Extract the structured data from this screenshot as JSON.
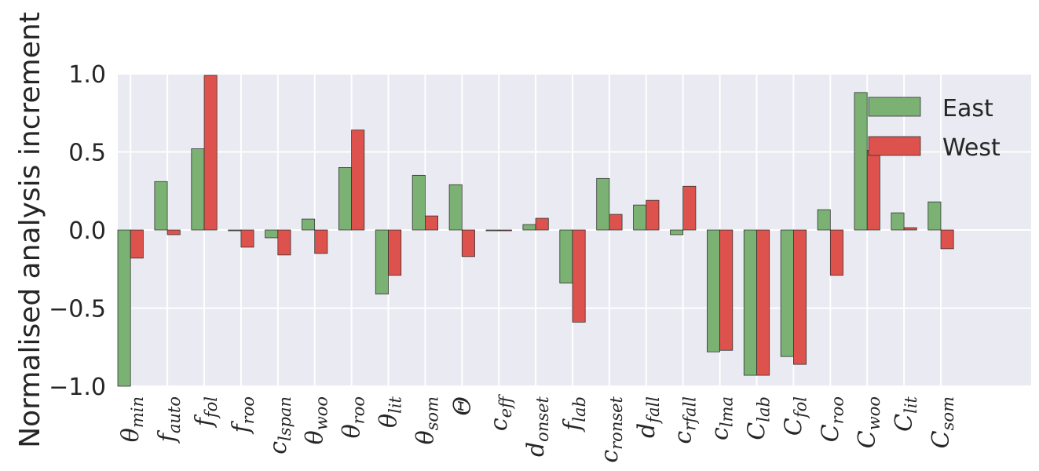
{
  "chart_data": {
    "type": "bar",
    "title": "",
    "xlabel": "",
    "ylabel": "Normalised analysis increment",
    "ylim": [
      -1.0,
      1.0
    ],
    "yticks": [
      1.0,
      0.5,
      0.0,
      -0.5,
      -1.0
    ],
    "ytick_labels": [
      "1.0",
      "0.5",
      "0.0",
      "−0.5",
      "−1.0"
    ],
    "grid": true,
    "legend_position": "top-right",
    "categories": [
      "θmin",
      "fauto",
      "ffol",
      "froo",
      "clspan",
      "θwoo",
      "θroo",
      "θlit",
      "θsom",
      "Θ",
      "ceff",
      "donset",
      "flab",
      "cronset",
      "dfall",
      "crfall",
      "clma",
      "Clab",
      "Cfol",
      "Croo",
      "Cwoo",
      "Clit",
      "Csom"
    ],
    "category_labels": [
      {
        "base": "θ",
        "sub": "min"
      },
      {
        "base": "f",
        "sub": "auto"
      },
      {
        "base": "f",
        "sub": "fol"
      },
      {
        "base": "f",
        "sub": "roo"
      },
      {
        "base": "c",
        "sub": "lspan"
      },
      {
        "base": "θ",
        "sub": "woo"
      },
      {
        "base": "θ",
        "sub": "roo"
      },
      {
        "base": "θ",
        "sub": "lit"
      },
      {
        "base": "θ",
        "sub": "som"
      },
      {
        "base": "Θ",
        "sub": ""
      },
      {
        "base": "c",
        "sub": "eff"
      },
      {
        "base": "d",
        "sub": "onset"
      },
      {
        "base": "f",
        "sub": "lab"
      },
      {
        "base": "c",
        "sub": "ronset"
      },
      {
        "base": "d",
        "sub": "fall"
      },
      {
        "base": "c",
        "sub": "rfall"
      },
      {
        "base": "c",
        "sub": "lma"
      },
      {
        "base": "C",
        "sub": "lab"
      },
      {
        "base": "C",
        "sub": "fol"
      },
      {
        "base": "C",
        "sub": "roo"
      },
      {
        "base": "C",
        "sub": "woo"
      },
      {
        "base": "C",
        "sub": "lit"
      },
      {
        "base": "C",
        "sub": "som"
      }
    ],
    "series": [
      {
        "name": "East",
        "color": "#7bb274",
        "values": [
          -1.0,
          0.31,
          0.52,
          -0.005,
          -0.05,
          0.07,
          0.4,
          -0.41,
          0.35,
          0.29,
          -0.005,
          0.035,
          -0.34,
          0.33,
          0.16,
          -0.03,
          -0.78,
          -0.93,
          -0.81,
          0.13,
          0.88,
          0.11,
          0.18
        ]
      },
      {
        "name": "West",
        "color": "#dd524c",
        "values": [
          -0.18,
          -0.03,
          0.99,
          -0.11,
          -0.16,
          -0.15,
          0.64,
          -0.29,
          0.09,
          -0.17,
          -0.005,
          0.075,
          -0.59,
          0.1,
          0.19,
          0.28,
          -0.77,
          -0.93,
          -0.86,
          -0.29,
          0.51,
          0.015,
          -0.12
        ]
      }
    ]
  }
}
